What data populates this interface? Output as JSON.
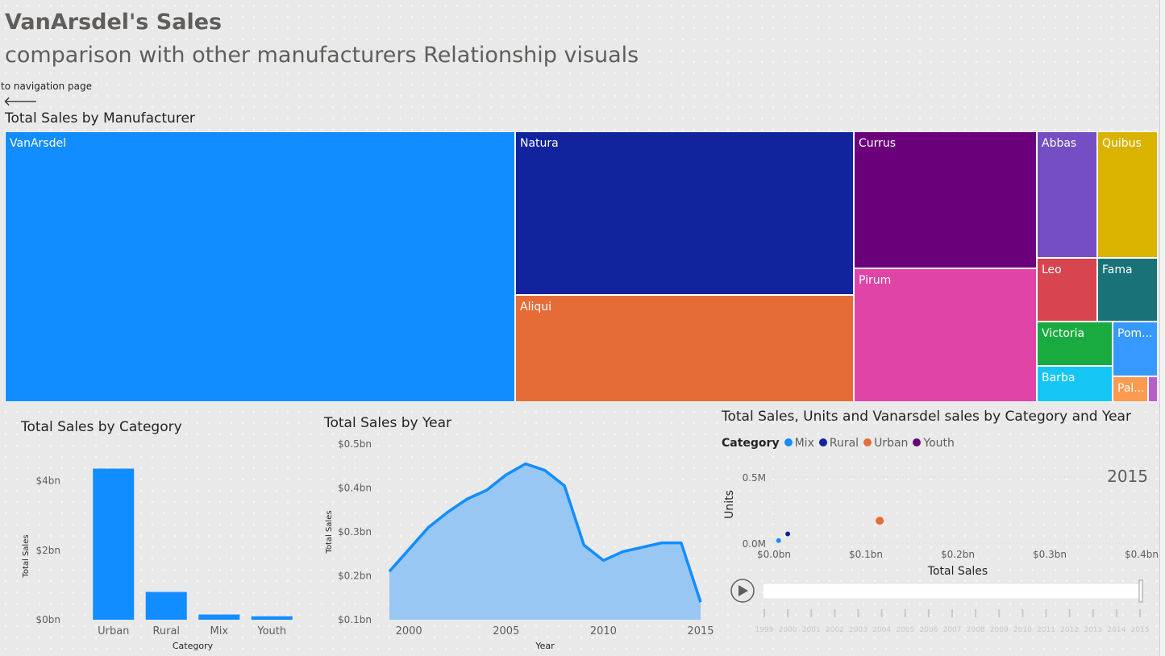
{
  "header": {
    "title": "VanArsdel's Sales",
    "subtitle": "comparison with other manufacturers Relationship visuals",
    "nav_label": "to navigation page"
  },
  "treemap": {
    "title": "Total Sales by Manufacturer",
    "tiles": [
      {
        "label": "VanArsdel",
        "color": "#118dff"
      },
      {
        "label": "Natura",
        "color": "#12239e"
      },
      {
        "label": "Aliqui",
        "color": "#e66c37"
      },
      {
        "label": "Currus",
        "color": "#6b007b"
      },
      {
        "label": "Pirum",
        "color": "#e044a7"
      },
      {
        "label": "Abbas",
        "color": "#744ec2"
      },
      {
        "label": "Quibus",
        "color": "#d9b300"
      },
      {
        "label": "Leo",
        "color": "#d64550"
      },
      {
        "label": "Fama",
        "color": "#197278"
      },
      {
        "label": "Victoria",
        "color": "#1aab40"
      },
      {
        "label": "Pom...",
        "color": "#3599ff"
      },
      {
        "label": "Barba",
        "color": "#15c6f4"
      },
      {
        "label": "Pal...",
        "color": "#fc9a4f"
      },
      {
        "label": "",
        "color": "#b65fc9"
      }
    ]
  },
  "chart_data": [
    {
      "type": "bar",
      "title": "Total Sales by Category",
      "xlabel": "Category",
      "ylabel": "Total Sales",
      "categories": [
        "Urban",
        "Rural",
        "Mix",
        "Youth"
      ],
      "values": [
        4.35,
        0.8,
        0.15,
        0.1
      ],
      "unit": "$bn",
      "yticks": [
        "$0bn",
        "$2bn",
        "$4bn"
      ],
      "ylim": [
        0,
        4.5
      ],
      "color": "#118dff"
    },
    {
      "type": "area",
      "title": "Total Sales by Year",
      "xlabel": "Year",
      "ylabel": "Total Sales",
      "x": [
        1999,
        2000,
        2001,
        2002,
        2003,
        2004,
        2005,
        2006,
        2007,
        2008,
        2009,
        2010,
        2011,
        2012,
        2013,
        2014,
        2015
      ],
      "values": [
        0.21,
        0.26,
        0.31,
        0.345,
        0.375,
        0.395,
        0.43,
        0.455,
        0.44,
        0.405,
        0.27,
        0.235,
        0.255,
        0.265,
        0.275,
        0.275,
        0.14
      ],
      "xticks": [
        "2000",
        "2005",
        "2010",
        "2015"
      ],
      "yticks": [
        "$0.1bn",
        "$0.2bn",
        "$0.3bn",
        "$0.4bn",
        "$0.5bn"
      ],
      "ylim": [
        0.1,
        0.5
      ],
      "color": "#118dff"
    },
    {
      "type": "scatter",
      "title": "Total Sales, Units and Vanarsdel sales by Category and Year",
      "legend_title": "Category",
      "legend": [
        {
          "name": "Mix",
          "color": "#118dff"
        },
        {
          "name": "Rural",
          "color": "#12239e"
        },
        {
          "name": "Urban",
          "color": "#e66c37"
        },
        {
          "name": "Youth",
          "color": "#6b007b"
        }
      ],
      "xlabel": "Total Sales",
      "ylabel": "Units",
      "xticks": [
        "$0.0bn",
        "$0.1bn",
        "$0.2bn",
        "$0.3bn",
        "$0.4bn"
      ],
      "yticks": [
        "0.0M",
        "0.5M"
      ],
      "xlim": [
        0,
        0.4
      ],
      "play_year": "2015",
      "points": [
        {
          "series": "Mix",
          "x": 0.005,
          "y": 0.02
        },
        {
          "series": "Rural",
          "x": 0.015,
          "y": 0.07
        },
        {
          "series": "Urban",
          "x": 0.115,
          "y": 0.17
        }
      ],
      "timeline_years": [
        "1999",
        "2000",
        "2001",
        "2002",
        "2003",
        "2004",
        "2005",
        "2006",
        "2007",
        "2008",
        "2009",
        "2010",
        "2011",
        "2012",
        "2013",
        "2014",
        "2015"
      ]
    }
  ]
}
